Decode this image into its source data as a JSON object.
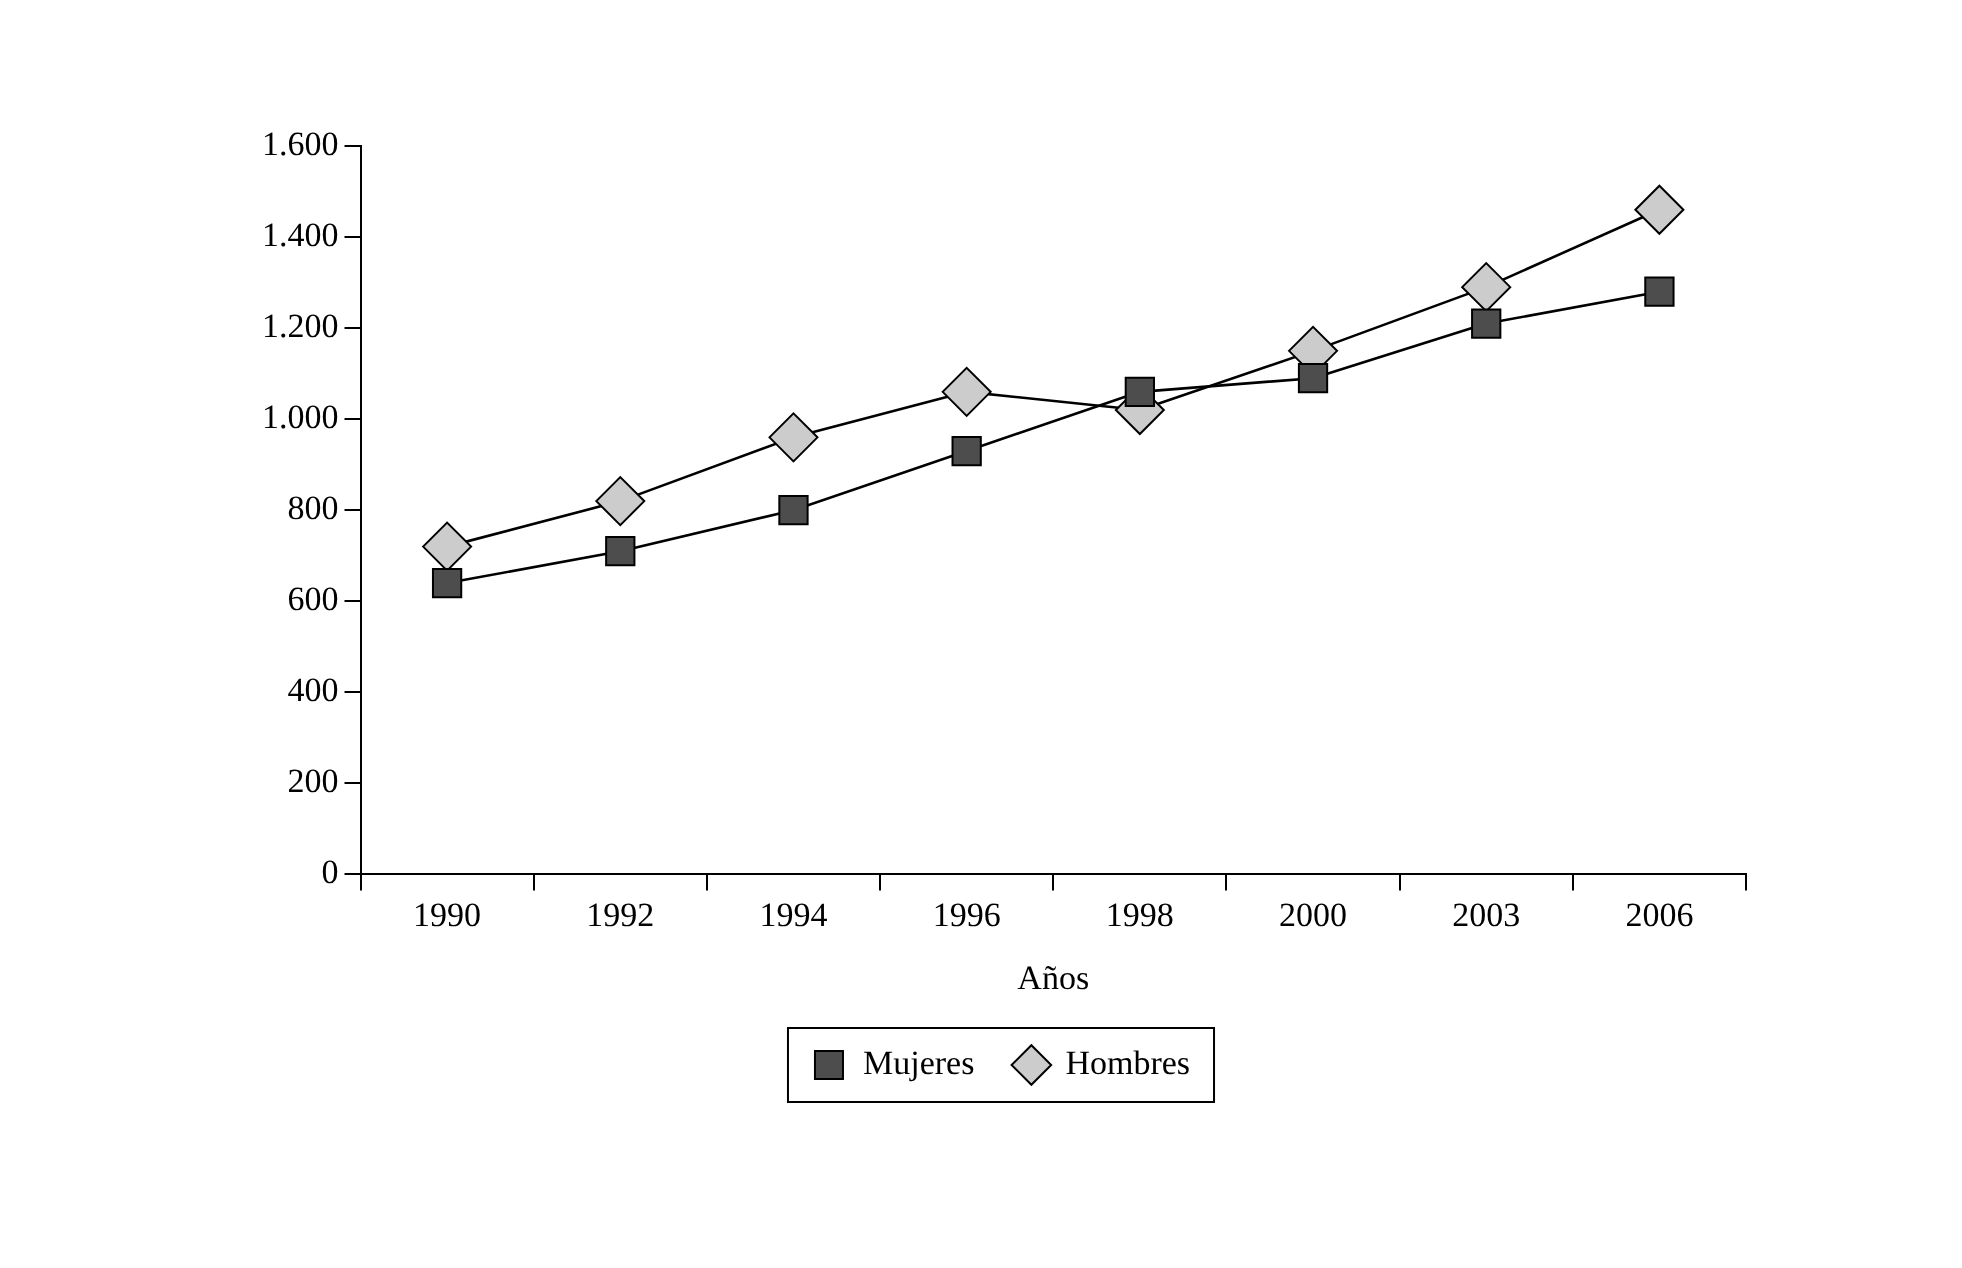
{
  "chart_data": {
    "type": "line",
    "xlabel": "Años",
    "categories": [
      "1990",
      "1992",
      "1994",
      "1996",
      "1998",
      "2000",
      "2003",
      "2006"
    ],
    "series": [
      {
        "name": "Mujeres",
        "color": "#4d4d4d",
        "marker": "square",
        "values": [
          640,
          710,
          800,
          930,
          1060,
          1090,
          1210,
          1280
        ]
      },
      {
        "name": "Hombres",
        "color": "#cccccc",
        "marker": "diamond",
        "values": [
          720,
          820,
          960,
          1060,
          1020,
          1150,
          1290,
          1460
        ]
      }
    ],
    "ylim": [
      0,
      1600
    ],
    "yticks": [
      0,
      200,
      400,
      600,
      800,
      {
        "value": 1000,
        "label": "1.000"
      },
      {
        "value": 1200,
        "label": "1.200"
      },
      {
        "value": 1400,
        "label": "1.400"
      },
      {
        "value": 1600,
        "label": "1.600"
      }
    ],
    "grid": false,
    "legend": "bottom",
    "line_style": "solid"
  }
}
